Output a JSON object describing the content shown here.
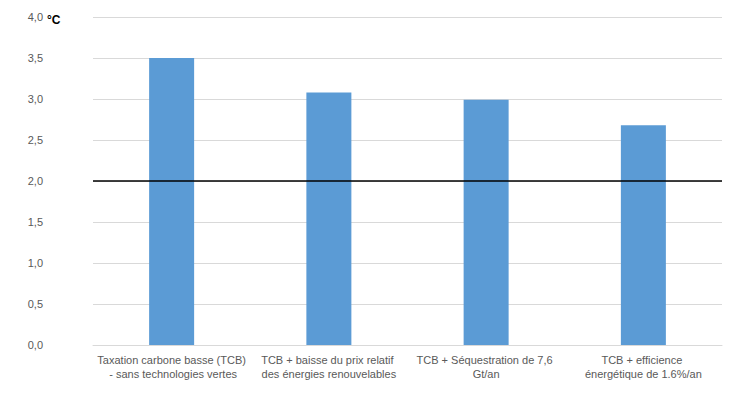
{
  "chart_data": {
    "type": "bar",
    "ylabel": "°C",
    "categories": [
      "Taxation carbone basse (TCB) - sans technologies vertes",
      "TCB + baisse du prix relatif des énergies renouvelables",
      "TCB + Séquestration de 7,6 Gt/an",
      "TCB + efficience énergétique de 1.6%/an"
    ],
    "values": [
      3.5,
      3.08,
      2.99,
      2.68
    ],
    "color": "#5b9bd5",
    "ylim": [
      0,
      4
    ],
    "yticks": [
      {
        "value": 0,
        "label": "0,0"
      },
      {
        "value": 0.5,
        "label": "0,5"
      },
      {
        "value": 1,
        "label": "1,0"
      },
      {
        "value": 1.5,
        "label": "1,5"
      },
      {
        "value": 2,
        "label": "2,0"
      },
      {
        "value": 2.5,
        "label": "2,5"
      },
      {
        "value": 3,
        "label": "3,0"
      },
      {
        "value": 3.5,
        "label": "3,5"
      },
      {
        "value": 4,
        "label": "4,0"
      }
    ],
    "hline": 2,
    "grid": true
  }
}
